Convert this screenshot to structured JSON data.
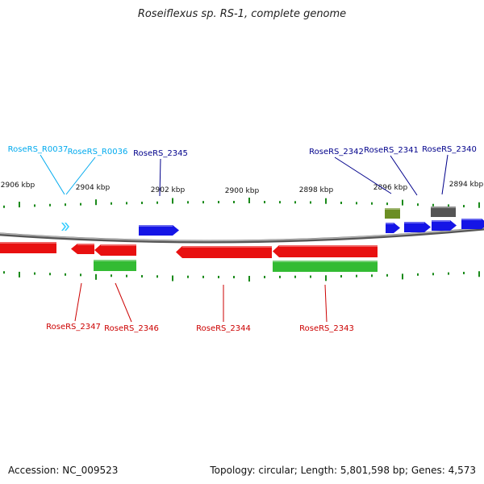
{
  "title": "Roseiflexus sp. RS-1, complete genome",
  "footer": {
    "accession": "Accession: NC_009523",
    "summary": "Topology: circular; Length: 5,801,598 bp; Genes: 4,573"
  },
  "colors": {
    "forward_cds": "#1515e6",
    "reverse_cds": "#e81010",
    "rna": "#33ccff",
    "gene_green": "#33bb33",
    "olive": "#6b8e23",
    "gray_feature": "#555555",
    "backbone": "#888888",
    "tick": "#1a8a1a",
    "label_blue": "#00008b",
    "label_red": "#cc0000",
    "label_cyan": "#00aaee"
  },
  "scale": {
    "unit": "kbp",
    "labels": [
      "2906 kbp",
      "2904 kbp",
      "2902 kbp",
      "2900 kbp",
      "2898 kbp",
      "2896 kbp",
      "2894 kbp"
    ]
  },
  "labels": {
    "top": [
      "RoseRS_R0037",
      "RoseRS_R0036",
      "RoseRS_2345",
      "RoseRS_2342",
      "RoseRS_2341",
      "RoseRS_2340"
    ],
    "bottom": [
      "RoseRS_2347",
      "RoseRS_2346",
      "RoseRS_2344",
      "RoseRS_2343"
    ]
  }
}
